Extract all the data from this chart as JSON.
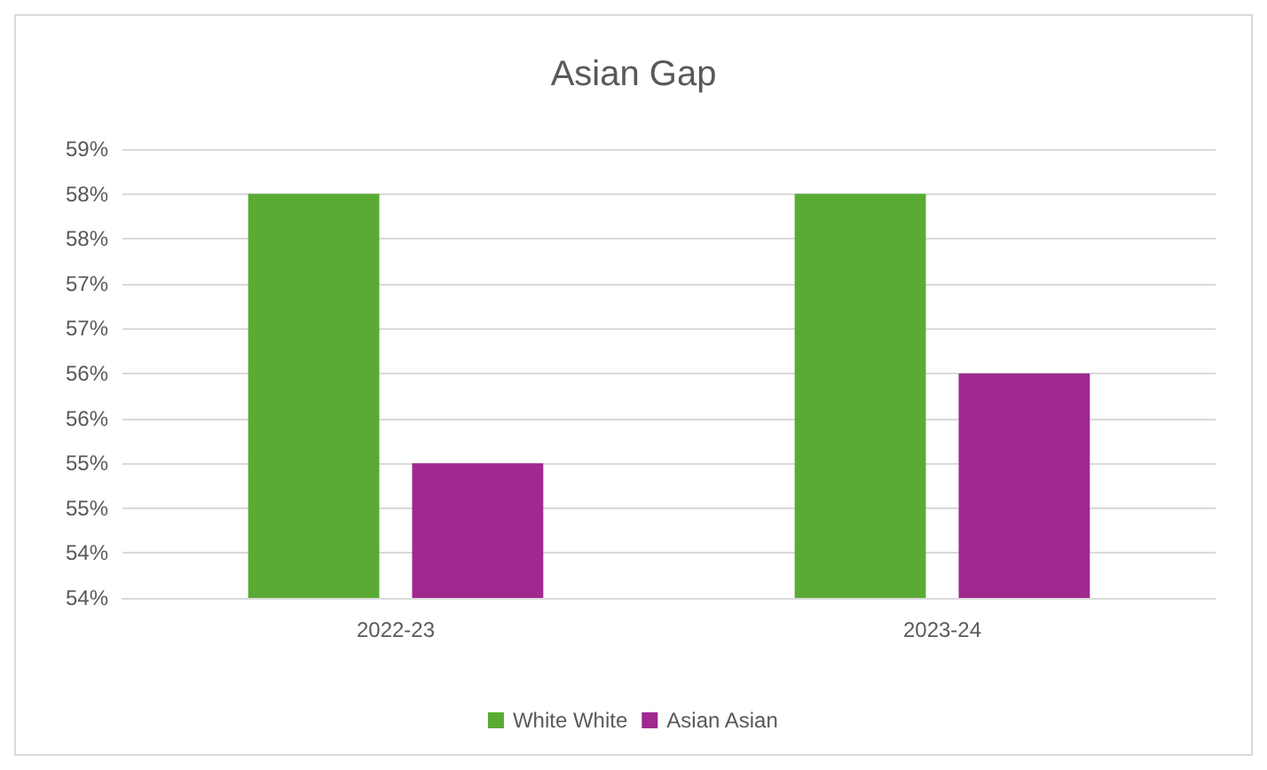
{
  "chart_data": {
    "type": "bar",
    "title": "Asian Gap",
    "categories": [
      "2022-23",
      "2023-24"
    ],
    "series": [
      {
        "name": "White White",
        "color": "#5aab34",
        "values": [
          58.25,
          58.25
        ]
      },
      {
        "name": "Asian Asian",
        "color": "#a0288f",
        "values": [
          55.25,
          56.25
        ]
      }
    ],
    "ylim": [
      53.75,
      58.75
    ],
    "yticks": [
      {
        "value": 53.75,
        "label": "54%"
      },
      {
        "value": 54.25,
        "label": "54%"
      },
      {
        "value": 54.75,
        "label": "55%"
      },
      {
        "value": 55.25,
        "label": "55%"
      },
      {
        "value": 55.75,
        "label": "56%"
      },
      {
        "value": 56.25,
        "label": "56%"
      },
      {
        "value": 56.75,
        "label": "57%"
      },
      {
        "value": 57.25,
        "label": "57%"
      },
      {
        "value": 57.75,
        "label": "58%"
      },
      {
        "value": 58.25,
        "label": "58%"
      },
      {
        "value": 58.75,
        "label": "59%"
      }
    ],
    "grid": true,
    "legend": "bottom"
  }
}
